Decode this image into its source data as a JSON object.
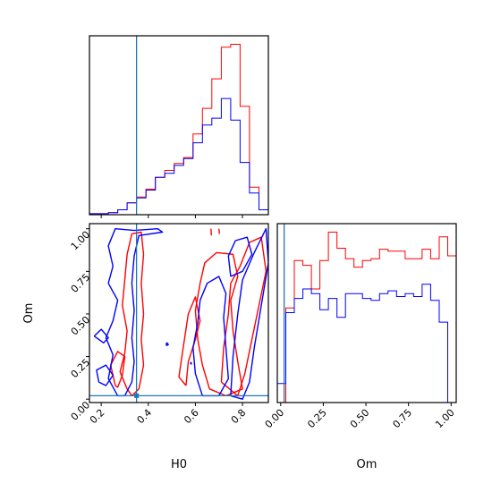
{
  "chart_data": {
    "type": "corner",
    "parameters": [
      "H0",
      "Om"
    ],
    "truth": {
      "H0": 0.35,
      "Om": 0.02
    },
    "colors": {
      "red_series": "#ff0000",
      "blue_series": "#0000ff",
      "truth": "#1f77b4"
    },
    "axes": {
      "H0": {
        "xlim": [
          0.15,
          0.91
        ],
        "ticks": [
          0.2,
          0.4,
          0.6,
          0.8
        ],
        "tick_labels": [
          "0.2",
          "0.4",
          "0.6",
          "0.8"
        ]
      },
      "Om": {
        "lim": [
          -0.02,
          1.03
        ],
        "ticks": [
          0.0,
          0.25,
          0.5,
          0.75,
          1.0
        ],
        "tick_labels": [
          "0.00",
          "0.25",
          "0.50",
          "0.75",
          "1.00"
        ]
      }
    },
    "xlabels": {
      "H0": "H0",
      "Om": "Om"
    },
    "ylabel": "Om",
    "hist_H0": {
      "bin_edges": [
        0.15,
        0.19,
        0.23,
        0.27,
        0.31,
        0.35,
        0.39,
        0.43,
        0.47,
        0.51,
        0.55,
        0.59,
        0.63,
        0.67,
        0.71,
        0.75,
        0.79,
        0.83,
        0.87,
        0.91
      ],
      "red": [
        1,
        1,
        2,
        5,
        12,
        18,
        26,
        38,
        45,
        52,
        58,
        82,
        108,
        138,
        170,
        173,
        110,
        28,
        5
      ],
      "blue": [
        1,
        1,
        2,
        5,
        12,
        17,
        25,
        38,
        42,
        50,
        57,
        73,
        91,
        98,
        118,
        96,
        53,
        22,
        5
      ]
    },
    "hist_Om": {
      "bin_edges": [
        -0.02,
        0.03,
        0.08,
        0.13,
        0.18,
        0.23,
        0.28,
        0.33,
        0.38,
        0.43,
        0.48,
        0.53,
        0.58,
        0.63,
        0.68,
        0.73,
        0.78,
        0.83,
        0.88,
        0.93,
        0.98,
        1.03
      ],
      "red": [
        0,
        100,
        150,
        145,
        120,
        150,
        180,
        163,
        152,
        143,
        150,
        152,
        162,
        160,
        160,
        152,
        152,
        162,
        152,
        175,
        155
      ],
      "blue": [
        20,
        95,
        110,
        120,
        115,
        98,
        110,
        90,
        115,
        115,
        110,
        108,
        115,
        118,
        112,
        115,
        112,
        125,
        108,
        85,
        0
      ]
    },
    "contours_2d": [
      {
        "series": "red",
        "points": [
          [
            0.31,
            0.06
          ],
          [
            0.28,
            0.16
          ],
          [
            0.3,
            0.27
          ],
          [
            0.31,
            0.4
          ],
          [
            0.29,
            0.55
          ],
          [
            0.3,
            0.7
          ],
          [
            0.31,
            0.85
          ],
          [
            0.33,
            0.97
          ],
          [
            0.37,
            0.98
          ],
          [
            0.38,
            0.85
          ],
          [
            0.37,
            0.68
          ],
          [
            0.38,
            0.5
          ],
          [
            0.37,
            0.35
          ],
          [
            0.38,
            0.2
          ],
          [
            0.36,
            0.06
          ],
          [
            0.33,
            0.02
          ],
          [
            0.31,
            0.06
          ]
        ]
      },
      {
        "series": "red",
        "points": [
          [
            0.26,
            0.08
          ],
          [
            0.24,
            0.2
          ],
          [
            0.27,
            0.28
          ],
          [
            0.3,
            0.25
          ],
          [
            0.29,
            0.14
          ],
          [
            0.27,
            0.07
          ],
          [
            0.26,
            0.08
          ]
        ]
      },
      {
        "series": "red",
        "points": [
          [
            0.66,
            0.06
          ],
          [
            0.63,
            0.2
          ],
          [
            0.61,
            0.35
          ],
          [
            0.6,
            0.52
          ],
          [
            0.62,
            0.68
          ],
          [
            0.64,
            0.8
          ],
          [
            0.69,
            0.86
          ],
          [
            0.76,
            0.85
          ],
          [
            0.78,
            0.72
          ],
          [
            0.75,
            0.58
          ],
          [
            0.76,
            0.4
          ],
          [
            0.78,
            0.22
          ],
          [
            0.8,
            0.06
          ],
          [
            0.73,
            0.02
          ],
          [
            0.66,
            0.06
          ]
        ]
      },
      {
        "series": "red",
        "points": [
          [
            0.71,
            0.1
          ],
          [
            0.72,
            0.3
          ],
          [
            0.74,
            0.5
          ],
          [
            0.75,
            0.68
          ],
          [
            0.79,
            0.78
          ],
          [
            0.83,
            0.92
          ],
          [
            0.88,
            0.95
          ],
          [
            0.9,
            0.75
          ],
          [
            0.87,
            0.55
          ],
          [
            0.84,
            0.35
          ],
          [
            0.81,
            0.15
          ],
          [
            0.78,
            0.02
          ],
          [
            0.71,
            0.1
          ]
        ]
      },
      {
        "series": "red",
        "points": [
          [
            0.56,
            0.08
          ],
          [
            0.57,
            0.22
          ],
          [
            0.6,
            0.35
          ],
          [
            0.62,
            0.46
          ],
          [
            0.6,
            0.6
          ],
          [
            0.57,
            0.5
          ],
          [
            0.55,
            0.32
          ],
          [
            0.53,
            0.13
          ],
          [
            0.56,
            0.08
          ]
        ]
      },
      {
        "series": "red",
        "points": [
          [
            0.666,
            1.0
          ],
          [
            0.668,
            0.96
          ]
        ]
      },
      {
        "series": "red",
        "points": [
          [
            0.7,
            1.0
          ],
          [
            0.702,
            0.97
          ]
        ]
      },
      {
        "series": "blue",
        "points": [
          [
            0.27,
            0.02
          ],
          [
            0.23,
            0.12
          ],
          [
            0.25,
            0.26
          ],
          [
            0.22,
            0.36
          ],
          [
            0.25,
            0.46
          ],
          [
            0.27,
            0.58
          ],
          [
            0.23,
            0.68
          ],
          [
            0.25,
            0.78
          ],
          [
            0.23,
            0.9
          ],
          [
            0.26,
            1.0
          ],
          [
            0.34,
            0.99
          ],
          [
            0.44,
            1.0
          ],
          [
            0.46,
            0.98
          ],
          [
            0.36,
            0.96
          ],
          [
            0.34,
            0.84
          ],
          [
            0.33,
            0.68
          ],
          [
            0.34,
            0.52
          ],
          [
            0.33,
            0.36
          ],
          [
            0.34,
            0.22
          ],
          [
            0.33,
            0.1
          ],
          [
            0.3,
            0.02
          ],
          [
            0.27,
            0.02
          ]
        ]
      },
      {
        "series": "blue",
        "points": [
          [
            0.19,
            0.1
          ],
          [
            0.18,
            0.17
          ],
          [
            0.22,
            0.2
          ],
          [
            0.25,
            0.14
          ],
          [
            0.22,
            0.08
          ],
          [
            0.19,
            0.1
          ]
        ]
      },
      {
        "series": "blue",
        "points": [
          [
            0.17,
            0.37
          ],
          [
            0.2,
            0.41
          ],
          [
            0.23,
            0.36
          ],
          [
            0.21,
            0.33
          ],
          [
            0.17,
            0.37
          ]
        ]
      },
      {
        "series": "blue",
        "points": [
          [
            0.63,
            0.02
          ],
          [
            0.6,
            0.15
          ],
          [
            0.59,
            0.3
          ],
          [
            0.61,
            0.45
          ],
          [
            0.62,
            0.58
          ],
          [
            0.65,
            0.68
          ],
          [
            0.7,
            0.72
          ],
          [
            0.73,
            0.62
          ],
          [
            0.72,
            0.48
          ],
          [
            0.73,
            0.3
          ],
          [
            0.74,
            0.12
          ],
          [
            0.7,
            0.02
          ],
          [
            0.63,
            0.02
          ]
        ]
      },
      {
        "series": "blue",
        "points": [
          [
            0.75,
            0.02
          ],
          [
            0.76,
            0.25
          ],
          [
            0.78,
            0.5
          ],
          [
            0.8,
            0.7
          ],
          [
            0.85,
            0.86
          ],
          [
            0.9,
            1.0
          ],
          [
            0.91,
            0.8
          ],
          [
            0.88,
            0.55
          ],
          [
            0.85,
            0.3
          ],
          [
            0.83,
            0.1
          ],
          [
            0.8,
            0.0
          ],
          [
            0.75,
            0.02
          ]
        ]
      },
      {
        "series": "blue",
        "points": [
          [
            0.75,
            0.72
          ],
          [
            0.74,
            0.84
          ],
          [
            0.77,
            0.93
          ],
          [
            0.82,
            0.95
          ],
          [
            0.84,
            0.85
          ],
          [
            0.8,
            0.75
          ],
          [
            0.75,
            0.72
          ]
        ]
      },
      {
        "series": "blue",
        "points": [
          [
            0.475,
            0.325
          ],
          [
            0.48,
            0.33
          ],
          [
            0.485,
            0.32
          ],
          [
            0.478,
            0.315
          ],
          [
            0.475,
            0.325
          ]
        ]
      },
      {
        "series": "blue",
        "points": [
          [
            0.578,
            0.212
          ],
          [
            0.582,
            0.215
          ],
          [
            0.583,
            0.206
          ],
          [
            0.578,
            0.212
          ]
        ]
      }
    ]
  }
}
